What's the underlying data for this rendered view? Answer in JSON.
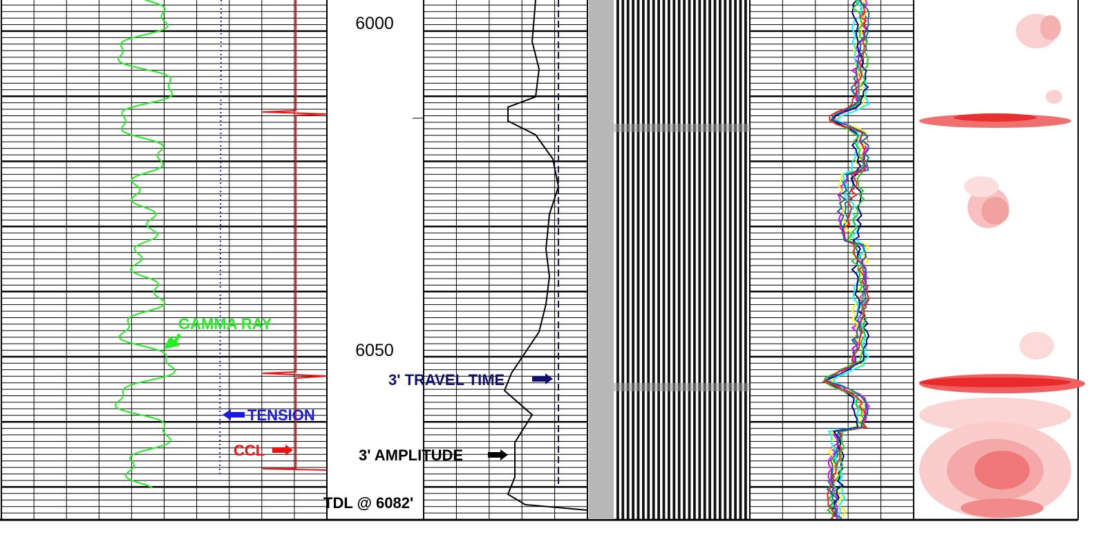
{
  "depth_labels": [
    6000,
    6050
  ],
  "annotations": {
    "gamma_ray": "GAMMA RAY",
    "tension": "TENSION",
    "ccl": "CCL",
    "travel_time": "3' TRAVEL TIME",
    "amplitude": "3' AMPLITUDE",
    "tdl": "TDL @ 6082'"
  }
}
